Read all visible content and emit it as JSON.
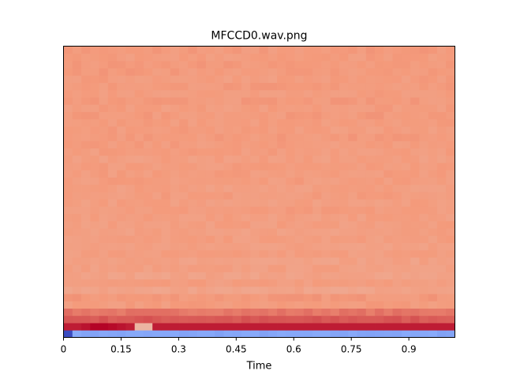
{
  "chart_data": {
    "type": "heatmap",
    "title": "MFCCD0.wav.png",
    "xlabel": "Time",
    "ylabel": "",
    "xlim": [
      0,
      1.02
    ],
    "x_ticks": [
      0,
      0.15,
      0.3,
      0.45,
      0.6,
      0.75,
      0.9
    ],
    "x_tick_labels": [
      "0",
      "0.15",
      "0.3",
      "0.45",
      "0.6",
      "0.75",
      "0.9"
    ],
    "y_ticks": [],
    "grid": false,
    "legend": false,
    "colormap": "coolwarm",
    "n_rows": 40,
    "n_cols": 44,
    "value_range": [
      -1,
      1
    ],
    "row_mean_values": [
      -0.55,
      0.92,
      0.72,
      0.62,
      0.48,
      0.5,
      0.43,
      0.47,
      0.44,
      0.46,
      0.45,
      0.47,
      0.46,
      0.47,
      0.46,
      0.47,
      0.47,
      0.48,
      0.47,
      0.48,
      0.47,
      0.48,
      0.48,
      0.48,
      0.47,
      0.48,
      0.48,
      0.49,
      0.48,
      0.48,
      0.49,
      0.48,
      0.49,
      0.48,
      0.49,
      0.48,
      0.49,
      0.49,
      0.48,
      0.49
    ],
    "row_overrides": [
      {
        "row": 1,
        "cols": [
          2,
          3,
          4,
          5,
          6
        ],
        "values": [
          0.95,
          1.0,
          1.0,
          0.98,
          0.95
        ]
      },
      {
        "row": 1,
        "cols": [
          8,
          9
        ],
        "values": [
          0.3,
          0.3
        ]
      },
      {
        "row": 0,
        "cols": [
          0
        ],
        "values": [
          -1.0
        ]
      }
    ]
  }
}
